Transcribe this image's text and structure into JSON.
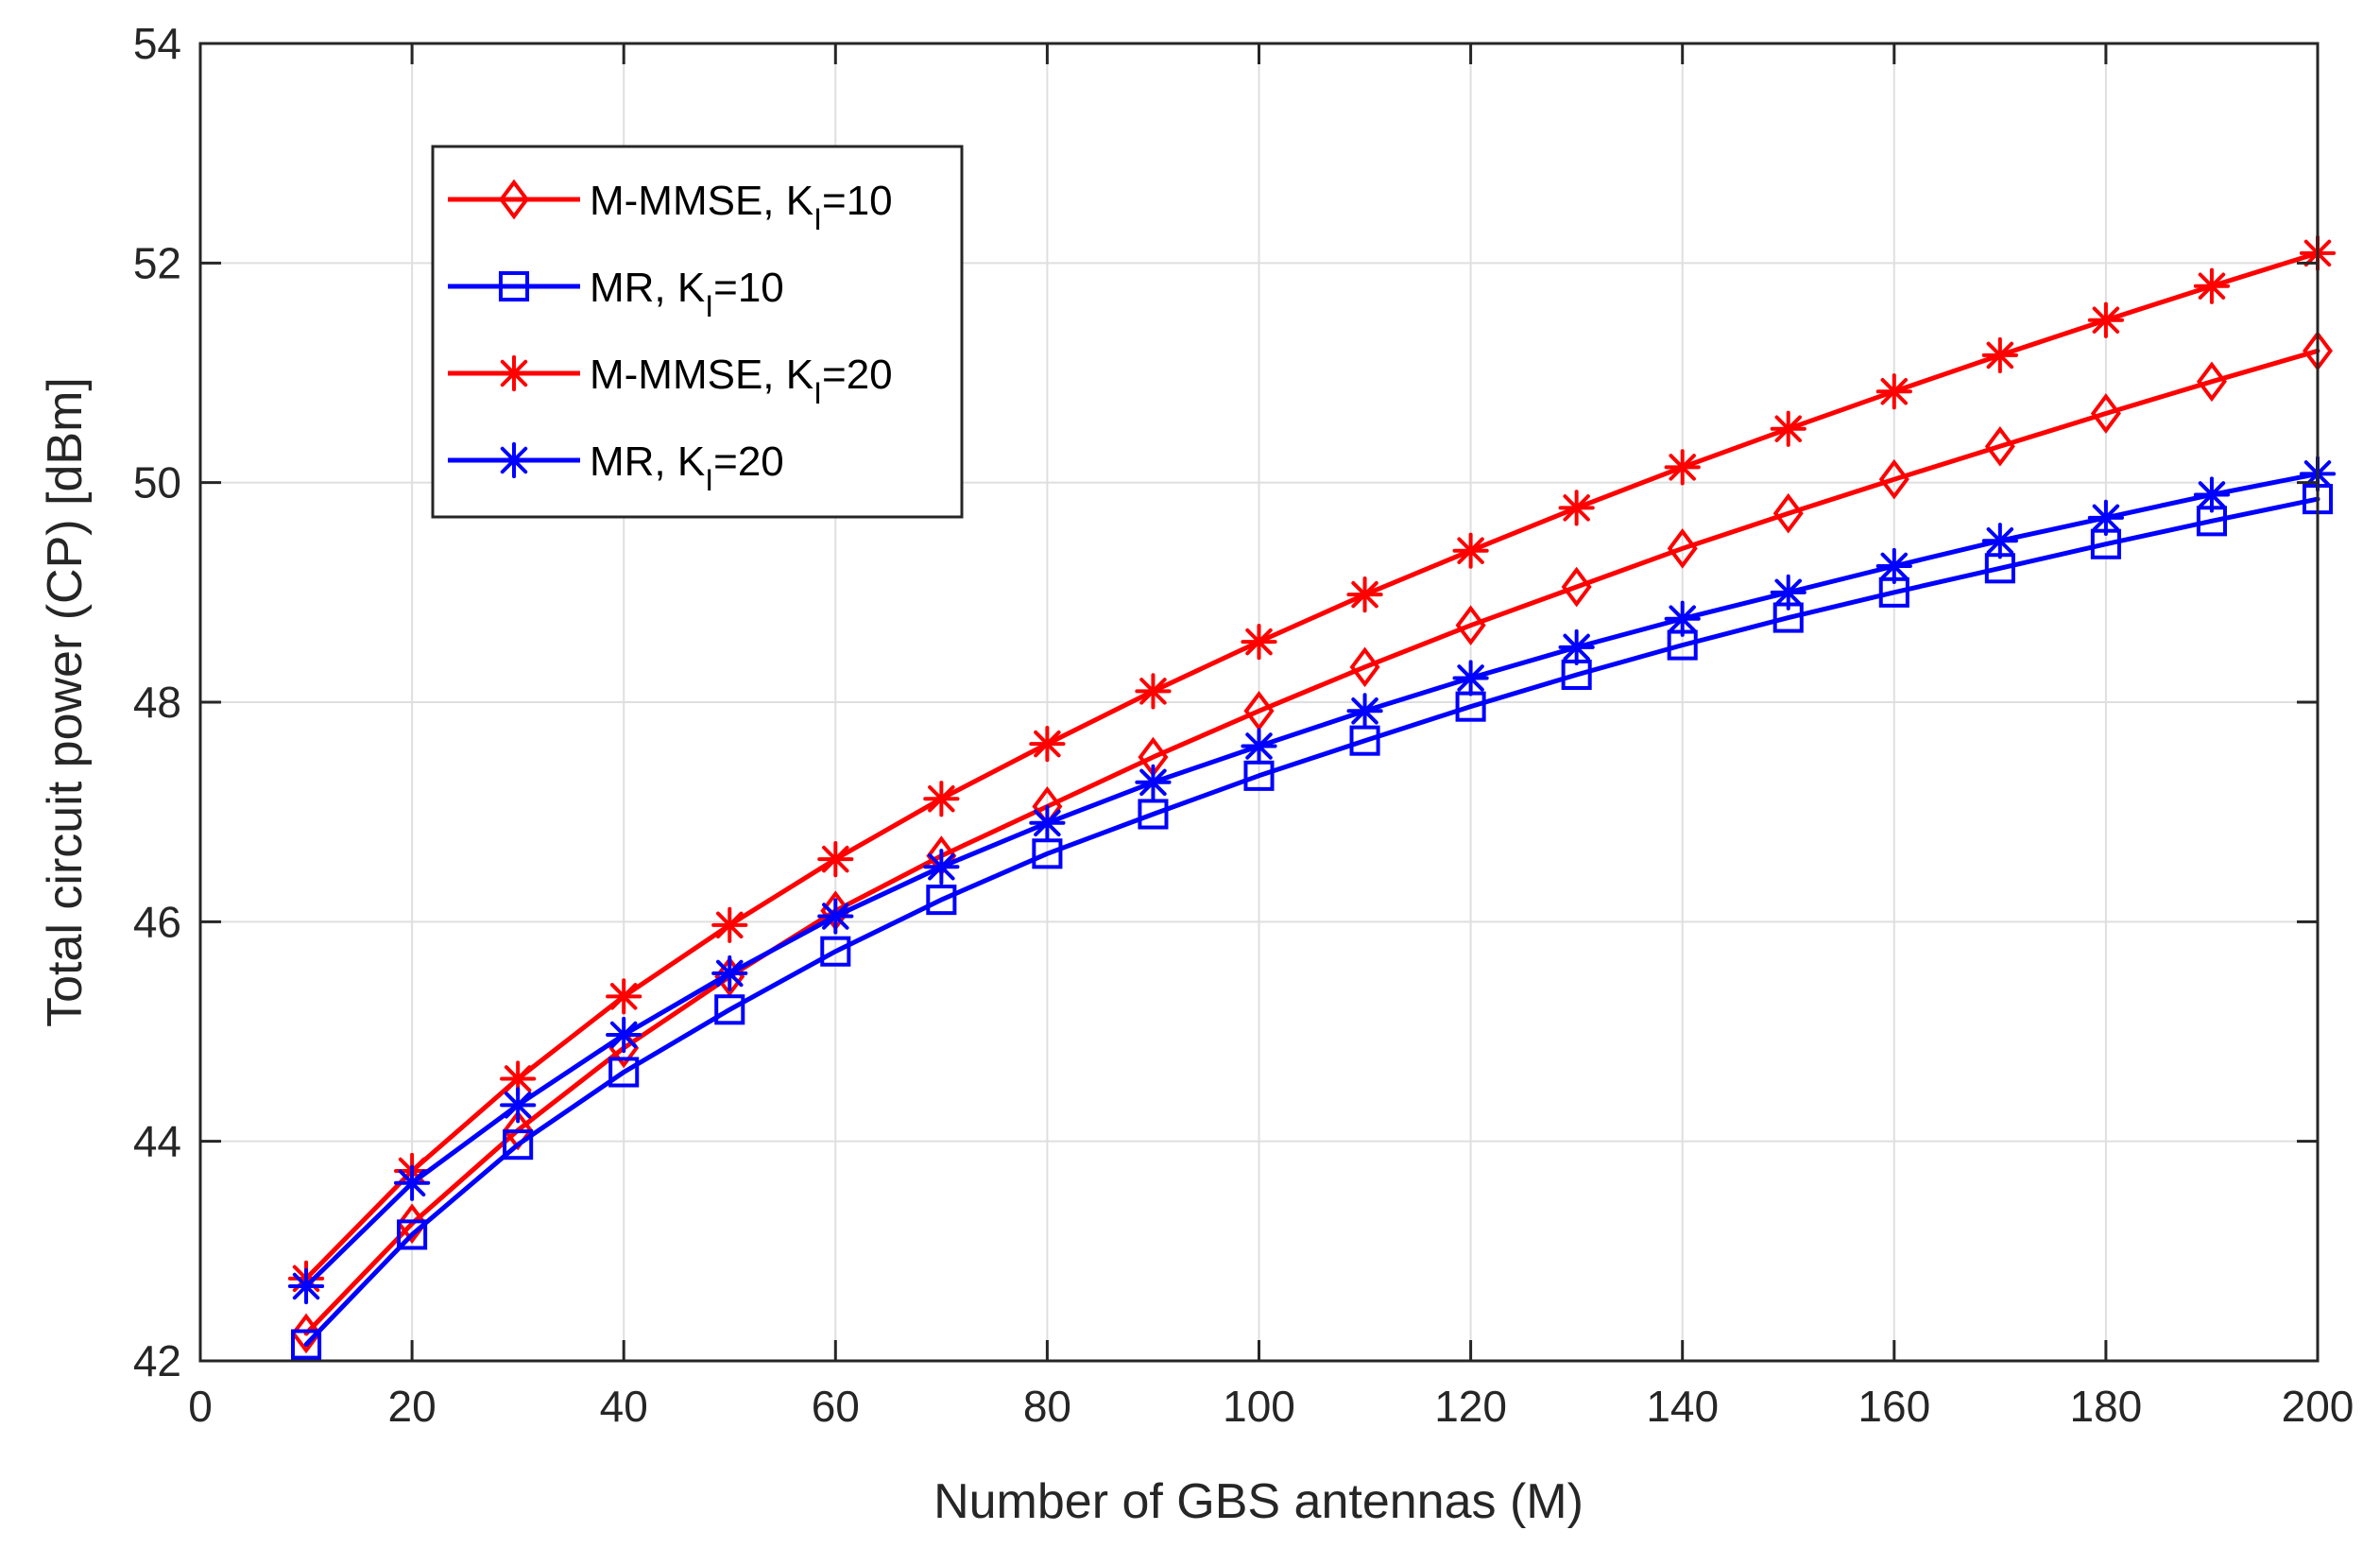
{
  "chart_data": {
    "type": "line",
    "title": "",
    "xlabel": "Number of GBS antennas (M)",
    "ylabel": "Total circuit power (CP) [dBm]",
    "xlim": [
      0,
      200
    ],
    "ylim": [
      42,
      54
    ],
    "xticks": [
      "0",
      "20",
      "40",
      "60",
      "80",
      "100",
      "120",
      "140",
      "160",
      "180",
      "200"
    ],
    "yticks": [
      "42",
      "44",
      "46",
      "48",
      "50",
      "52",
      "54"
    ],
    "grid": true,
    "legend_position": "upper-left",
    "x": [
      10,
      20,
      30,
      40,
      50,
      60,
      70,
      80,
      90,
      100,
      110,
      120,
      130,
      140,
      150,
      160,
      170,
      180,
      190,
      200
    ],
    "series": [
      {
        "name": "M-MMSE, K",
        "name_sub": "I",
        "name_suffix": "=10",
        "color": "#ff0000",
        "marker": "diamond",
        "values": [
          42.25,
          43.25,
          44.1,
          44.85,
          45.5,
          46.1,
          46.6,
          47.05,
          47.5,
          47.92,
          48.32,
          48.7,
          49.05,
          49.4,
          49.72,
          50.03,
          50.33,
          50.63,
          50.92,
          51.2
        ]
      },
      {
        "name": "MR, K",
        "name_sub": "I",
        "name_suffix": "=10",
        "color": "#0000ff",
        "marker": "square",
        "values": [
          42.15,
          43.15,
          43.97,
          44.63,
          45.2,
          45.73,
          46.2,
          46.62,
          46.98,
          47.33,
          47.65,
          47.96,
          48.25,
          48.52,
          48.77,
          49.0,
          49.22,
          49.44,
          49.65,
          49.85
        ]
      },
      {
        "name": "M-MMSE, K",
        "name_sub": "I",
        "name_suffix": "=20",
        "color": "#ff0000",
        "marker": "asterisk",
        "values": [
          42.75,
          43.73,
          44.57,
          45.32,
          45.97,
          46.57,
          47.12,
          47.62,
          48.1,
          48.55,
          48.98,
          49.38,
          49.77,
          50.14,
          50.49,
          50.83,
          51.16,
          51.48,
          51.79,
          52.09
        ]
      },
      {
        "name": "MR, K",
        "name_sub": "I",
        "name_suffix": "=20",
        "color": "#0000ff",
        "marker": "asterisk",
        "values": [
          42.68,
          43.62,
          44.33,
          44.97,
          45.53,
          46.05,
          46.5,
          46.9,
          47.27,
          47.6,
          47.92,
          48.22,
          48.5,
          48.76,
          49.0,
          49.24,
          49.47,
          49.68,
          49.89,
          50.08
        ]
      }
    ]
  }
}
